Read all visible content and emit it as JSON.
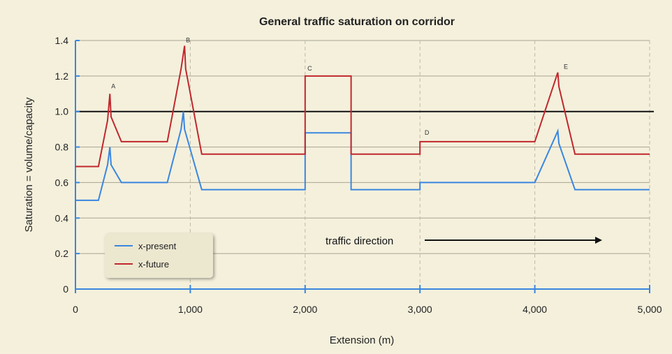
{
  "chart_data": {
    "type": "line",
    "title": "General traffic saturation on corridor",
    "xlabel": "Extension (m)",
    "ylabel": "Saturation = volume/capacity",
    "xlim": [
      0,
      5000
    ],
    "ylim": [
      0,
      1.4
    ],
    "x_ticks": [
      "0",
      "1,000",
      "2,000",
      "3,000",
      "4,000",
      "5,000"
    ],
    "x_tick_values": [
      0,
      1000,
      2000,
      3000,
      4000,
      5000
    ],
    "y_ticks": [
      "0",
      "0.2",
      "0.4",
      "0.6",
      "0.8",
      "1.0",
      "1.2",
      "1.4"
    ],
    "y_tick_values": [
      0,
      0.2,
      0.4,
      0.6,
      0.8,
      1.0,
      1.2,
      1.4
    ],
    "grid": true,
    "reference_line": {
      "y": 1.0,
      "color": "#111111"
    },
    "legend_position": "bottom-left",
    "series": [
      {
        "name": "x-present",
        "color": "#3a86e0",
        "x": [
          0,
          200,
          280,
          300,
          310,
          400,
          800,
          920,
          940,
          950,
          1100,
          2000,
          2000,
          2400,
          2400,
          3000,
          3000,
          4000,
          4200,
          4210,
          4350,
          5000
        ],
        "y": [
          0.5,
          0.5,
          0.7,
          0.8,
          0.7,
          0.6,
          0.6,
          0.9,
          1.0,
          0.9,
          0.56,
          0.56,
          0.88,
          0.88,
          0.56,
          0.56,
          0.6,
          0.6,
          0.89,
          0.82,
          0.56,
          0.56
        ]
      },
      {
        "name": "x-future",
        "color": "#c1272d",
        "x": [
          0,
          200,
          280,
          300,
          310,
          400,
          800,
          920,
          950,
          960,
          1100,
          2000,
          2000,
          2400,
          2400,
          3000,
          3000,
          4000,
          4200,
          4210,
          4350,
          5000
        ],
        "y": [
          0.69,
          0.69,
          0.95,
          1.1,
          0.97,
          0.83,
          0.83,
          1.24,
          1.37,
          1.24,
          0.76,
          0.76,
          1.2,
          1.2,
          0.76,
          0.76,
          0.83,
          0.83,
          1.22,
          1.14,
          0.76,
          0.76
        ]
      }
    ],
    "annotations": [
      {
        "text": "A",
        "x": 330,
        "y": 1.13
      },
      {
        "text": "B",
        "x": 980,
        "y": 1.39
      },
      {
        "text": "C",
        "x": 2040,
        "y": 1.23
      },
      {
        "text": "D",
        "x": 3060,
        "y": 0.87
      },
      {
        "text": "E",
        "x": 4270,
        "y": 1.24
      }
    ],
    "direction_text": "traffic direction"
  }
}
